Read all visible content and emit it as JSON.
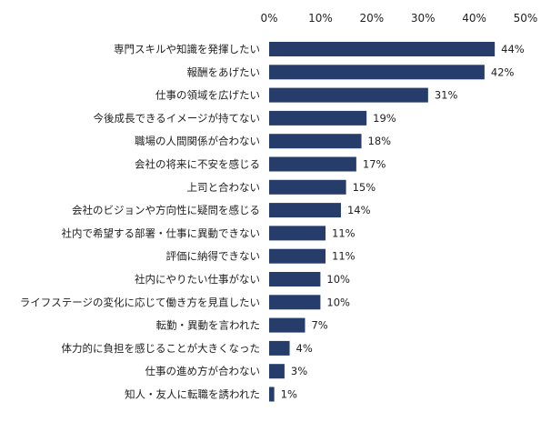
{
  "chart_data": {
    "type": "bar",
    "orientation": "horizontal",
    "categories": [
      "専門スキルや知識を発揮したい",
      "報酬をあげたい",
      "仕事の領域を広げたい",
      "今後成長できるイメージが持てない",
      "職場の人間関係が合わない",
      "会社の将来に不安を感じる",
      "上司と合わない",
      "会社のビジョンや方向性に疑問を感じる",
      "社内で希望する部署・仕事に異動できない",
      "評価に納得できない",
      "社内にやりたい仕事がない",
      "ライフステージの変化に応じて働き方を見直したい",
      "転勤・異動を言われた",
      "体力的に負担を感じることが大きくなった",
      "仕事の進め方が合わない",
      "知人・友人に転職を誘われた"
    ],
    "values": [
      44,
      42,
      31,
      19,
      18,
      17,
      15,
      14,
      11,
      11,
      10,
      10,
      7,
      4,
      3,
      1
    ],
    "value_labels": [
      "44%",
      "42%",
      "31%",
      "19%",
      "18%",
      "17%",
      "15%",
      "14%",
      "11%",
      "11%",
      "10%",
      "10%",
      "7%",
      "4%",
      "3%",
      "1%"
    ],
    "xlim": [
      0,
      50
    ],
    "x_ticks": [
      "0%",
      "10%",
      "20%",
      "30%",
      "40%",
      "50%"
    ],
    "axis_position": "top",
    "grid": false,
    "bar_color": "#263d6b"
  }
}
